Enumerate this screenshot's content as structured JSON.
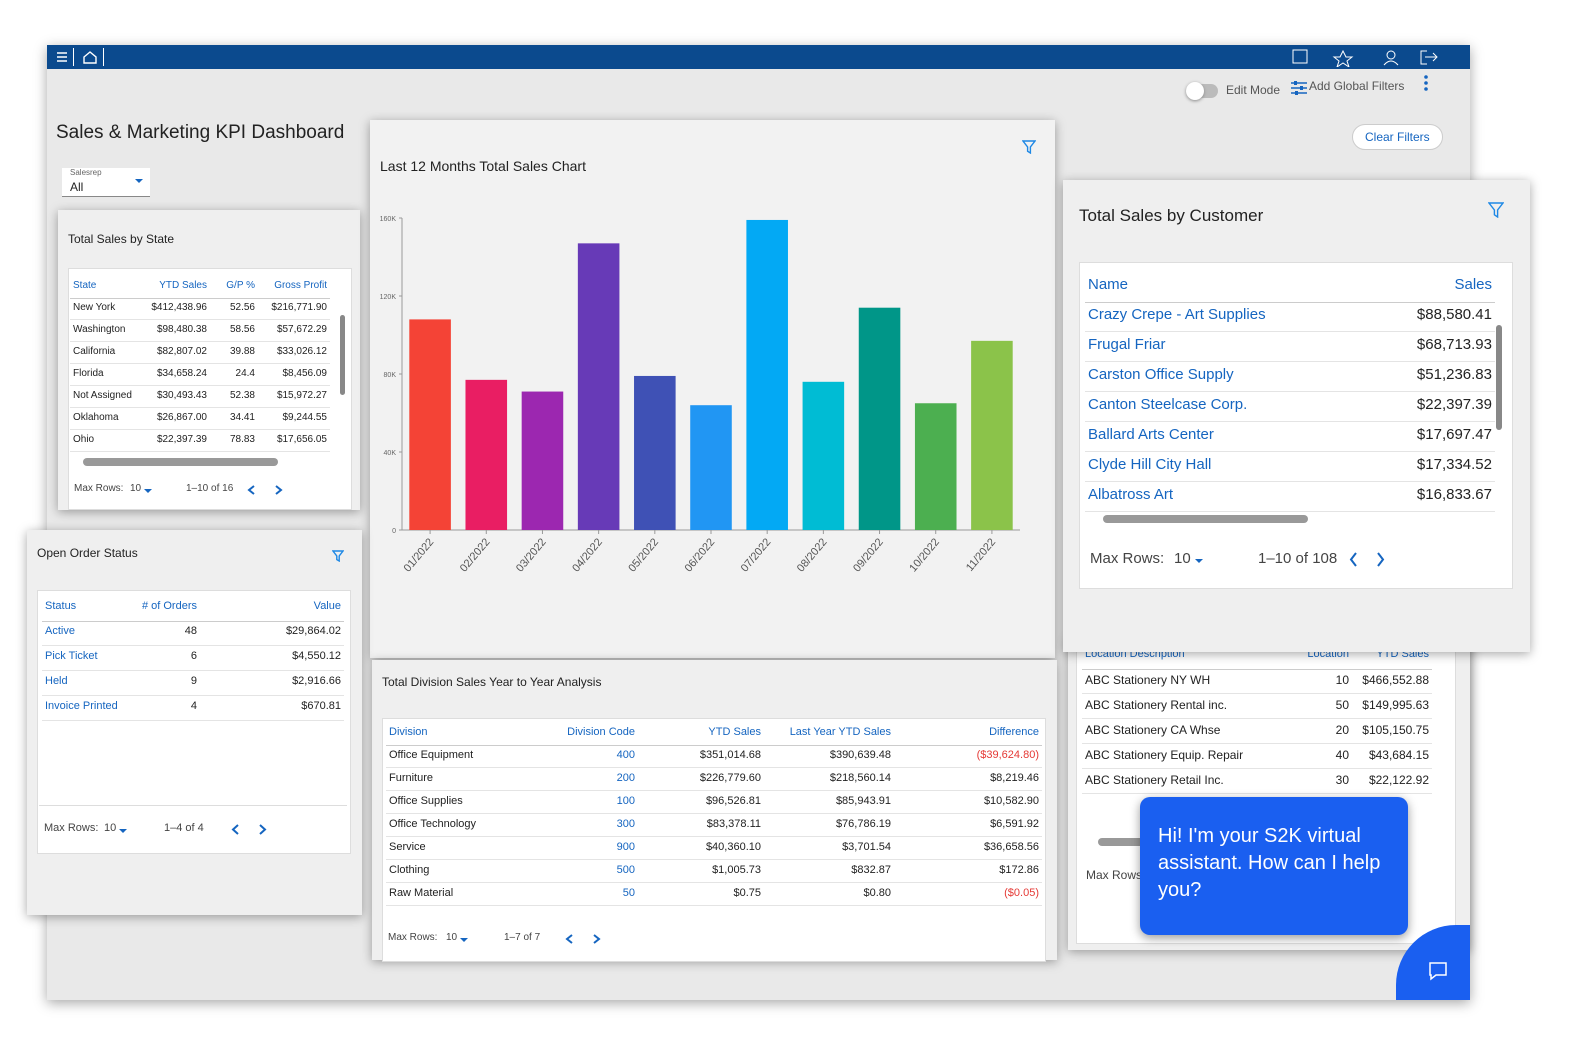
{
  "header": {
    "title": "Sales & Marketing KPI Dashboard",
    "edit_mode": "Edit Mode",
    "add_global_filters": "Add Global Filters",
    "clear_filters": "Clear Filters",
    "salesrep_label": "Salesrep",
    "salesrep_value": "All"
  },
  "state_table": {
    "title": "Total Sales by State",
    "columns": [
      "State",
      "YTD Sales",
      "G/P %",
      "Gross Profit"
    ],
    "rows": [
      [
        "New York",
        "$412,438.96",
        "52.56",
        "$216,771.90"
      ],
      [
        "Washington",
        "$98,480.38",
        "58.56",
        "$57,672.29"
      ],
      [
        "California",
        "$82,807.02",
        "39.88",
        "$33,026.12"
      ],
      [
        "Florida",
        "$34,658.24",
        "24.4",
        "$8,456.09"
      ],
      [
        "Not Assigned",
        "$30,493.43",
        "52.38",
        "$15,972.27"
      ],
      [
        "Oklahoma",
        "$26,867.00",
        "34.41",
        "$9,244.55"
      ],
      [
        "Ohio",
        "$22,397.39",
        "78.83",
        "$17,656.05"
      ]
    ],
    "max_rows_label": "Max Rows:",
    "max_rows": "10",
    "range": "1–10 of 16"
  },
  "chart_data": {
    "type": "bar",
    "title": "Last 12 Months Total Sales Chart",
    "categories": [
      "01/2022",
      "02/2022",
      "03/2022",
      "04/2022",
      "05/2022",
      "06/2022",
      "07/2022",
      "08/2022",
      "09/2022",
      "10/2022",
      "11/2022"
    ],
    "values": [
      108000,
      77000,
      71000,
      147000,
      79000,
      64000,
      159000,
      76000,
      114000,
      65000,
      97000
    ],
    "colors": [
      "#f44336",
      "#e91e63",
      "#9c27b0",
      "#673ab7",
      "#3f51b5",
      "#2196f3",
      "#03a9f4",
      "#00bcd4",
      "#009688",
      "#4caf50",
      "#8bc34a"
    ],
    "ylim": [
      0,
      160000
    ],
    "yticks": [
      0,
      {
        "value": 40000,
        "label": "40K"
      },
      {
        "value": 80000,
        "label": "80K"
      },
      {
        "value": 120000,
        "label": "120K"
      },
      {
        "value": 160000,
        "label": "160K"
      }
    ]
  },
  "customer_table": {
    "title": "Total Sales by Customer",
    "columns": [
      "Name",
      "Sales"
    ],
    "rows": [
      [
        "Crazy Crepe - Art Supplies",
        "$88,580.41"
      ],
      [
        "Frugal Friar",
        "$68,713.93"
      ],
      [
        "Carston Office Supply",
        "$51,236.83"
      ],
      [
        "Canton Steelcase Corp.",
        "$22,397.39"
      ],
      [
        "Ballard Arts Center",
        "$17,697.47"
      ],
      [
        "Clyde Hill City Hall",
        "$17,334.52"
      ],
      [
        "Albatross Art",
        "$16,833.67"
      ]
    ],
    "max_rows_label": "Max Rows:",
    "max_rows": "10",
    "range": "1–10 of 108"
  },
  "order_status": {
    "title": "Open Order Status",
    "columns": [
      "Status",
      "# of Orders",
      "Value"
    ],
    "rows": [
      [
        "Active",
        "48",
        "$29,864.02"
      ],
      [
        "Pick Ticket",
        "6",
        "$4,550.12"
      ],
      [
        "Held",
        "9",
        "$2,916.66"
      ],
      [
        "Invoice Printed -",
        "4",
        "$670.81"
      ]
    ],
    "max_rows_label": "Max Rows:",
    "max_rows": "10",
    "range": "1–4 of 4"
  },
  "division_table": {
    "title": "Total Division Sales Year to Year Analysis",
    "columns": [
      "Division",
      "Division Code",
      "YTD Sales",
      "Last Year YTD Sales",
      "Difference"
    ],
    "rows": [
      [
        "Office Equipment",
        "400",
        "$351,014.68",
        "$390,639.48",
        "($39,624.80)"
      ],
      [
        "Furniture",
        "200",
        "$226,779.60",
        "$218,560.14",
        "$8,219.46"
      ],
      [
        "Office Supplies",
        "100",
        "$96,526.81",
        "$85,943.91",
        "$10,582.90"
      ],
      [
        "Office Technology",
        "300",
        "$83,378.11",
        "$76,786.19",
        "$6,591.92"
      ],
      [
        "Service",
        "900",
        "$40,360.10",
        "$3,701.54",
        "$36,658.56"
      ],
      [
        "Clothing",
        "500",
        "$1,005.73",
        "$832.87",
        "$172.86"
      ],
      [
        "Raw Material",
        "50",
        "$0.75",
        "$0.80",
        "($0.05)"
      ]
    ],
    "max_rows_label": "Max Rows:",
    "max_rows": "10",
    "range": "1–7 of 7"
  },
  "location_table": {
    "columns": [
      "Location Description",
      "Location",
      "YTD Sales"
    ],
    "rows": [
      [
        "ABC Stationery NY WH",
        "10",
        "$466,552.88"
      ],
      [
        "ABC Stationery Rental inc.",
        "50",
        "$149,995.63"
      ],
      [
        "ABC Stationery CA Whse",
        "20",
        "$105,150.75"
      ],
      [
        "ABC Stationery Equip. Repair",
        "40",
        "$43,684.15"
      ],
      [
        "ABC Stationery Retail Inc.",
        "30",
        "$22,122.92"
      ]
    ],
    "max_rows_label": "Max Rows"
  },
  "chat": {
    "message": "Hi! I'm your S2K virtual assistant. How can I help you?"
  }
}
